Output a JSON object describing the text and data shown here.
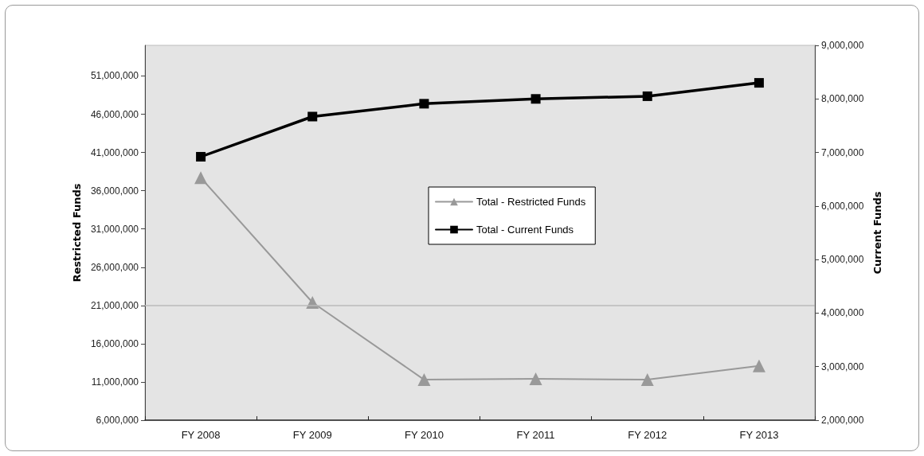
{
  "chart_data": {
    "type": "line",
    "ylabel": "Restricted Funds",
    "y2label": "Current Funds",
    "categories": [
      "FY 2008",
      "FY 2009",
      "FY 2010",
      "FY 2011",
      "FY 2012",
      "FY 2013"
    ],
    "series": [
      {
        "name": "Total - Restricted Funds",
        "color": "#999999",
        "marker": "triangle",
        "values": [
          37700000,
          21400000,
          11300000,
          11400000,
          11300000,
          13100000
        ]
      },
      {
        "name": "Total - Current Funds",
        "color": "#000000",
        "marker": "square",
        "axis": "y2",
        "values": [
          6920000,
          7670000,
          7910000,
          8000000,
          8050000,
          8300000
        ]
      }
    ],
    "ylim": [
      6000000,
      55000000
    ],
    "yticks": [
      {
        "value": 6000000,
        "label": "6,000,000"
      },
      {
        "value": 11000000,
        "label": "11,000,000"
      },
      {
        "value": 16000000,
        "label": "16,000,000"
      },
      {
        "value": 21000000,
        "label": "21,000,000"
      },
      {
        "value": 26000000,
        "label": "26,000,000"
      },
      {
        "value": 31000000,
        "label": "31,000,000"
      },
      {
        "value": 36000000,
        "label": "36,000,000"
      },
      {
        "value": 41000000,
        "label": "41,000,000"
      },
      {
        "value": 46000000,
        "label": "46,000,000"
      },
      {
        "value": 51000000,
        "label": "51,000,000"
      }
    ],
    "y2lim": [
      2000000,
      9000000
    ],
    "y2ticks": [
      {
        "value": 2000000,
        "label": "2,000,000"
      },
      {
        "value": 3000000,
        "label": "3,000,000"
      },
      {
        "value": 4000000,
        "label": "4,000,000"
      },
      {
        "value": 5000000,
        "label": "5,000,000"
      },
      {
        "value": 6000000,
        "label": "6,000,000"
      },
      {
        "value": 7000000,
        "label": "7,000,000"
      },
      {
        "value": 8000000,
        "label": "8,000,000"
      },
      {
        "value": 9000000,
        "label": "9,000,000"
      }
    ],
    "ref_lines": [
      {
        "axis": "y",
        "value": 21000000,
        "color": "#bbbbbb"
      }
    ],
    "grid": false,
    "legend": "center"
  }
}
